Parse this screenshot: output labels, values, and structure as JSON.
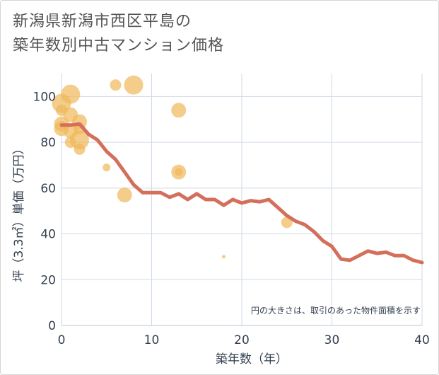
{
  "title_line1": "新潟県新潟市西区平島の",
  "title_line2": "築年数別中古マンション価格",
  "chart_data": {
    "type": "scatter+line",
    "xlabel": "築年数（年）",
    "ylabel": "坪（3.3㎡）単価（万円）",
    "xlim": [
      0,
      40
    ],
    "ylim": [
      0,
      110
    ],
    "xticks": [
      0,
      10,
      20,
      30,
      40
    ],
    "yticks": [
      0,
      20,
      40,
      60,
      80,
      100
    ],
    "grid": true,
    "note": "円の大きさは、取引のあった物件面積を示す",
    "colors": {
      "bubble": "#f0b85a",
      "line": "#d46f5b",
      "grid": "#cfdae6",
      "axis_text": "#333f4f"
    },
    "scatter": [
      {
        "x": 0,
        "y": 97,
        "size": "large"
      },
      {
        "x": 0,
        "y": 94,
        "size": "small"
      },
      {
        "x": 0,
        "y": 88,
        "size": "medium"
      },
      {
        "x": 0,
        "y": 86,
        "size": "medium"
      },
      {
        "x": 1,
        "y": 101,
        "size": "large"
      },
      {
        "x": 1,
        "y": 92,
        "size": "medium"
      },
      {
        "x": 1,
        "y": 85,
        "size": "medium"
      },
      {
        "x": 1,
        "y": 80,
        "size": "small"
      },
      {
        "x": 2,
        "y": 89,
        "size": "medium"
      },
      {
        "x": 2,
        "y": 86,
        "size": "small"
      },
      {
        "x": 2,
        "y": 81,
        "size": "large"
      },
      {
        "x": 2,
        "y": 77,
        "size": "small"
      },
      {
        "x": 5,
        "y": 69,
        "size": "xsmall"
      },
      {
        "x": 6,
        "y": 105,
        "size": "small"
      },
      {
        "x": 7,
        "y": 57,
        "size": "medium"
      },
      {
        "x": 8,
        "y": 105,
        "size": "large"
      },
      {
        "x": 13,
        "y": 94,
        "size": "medium"
      },
      {
        "x": 13,
        "y": 67,
        "size": "medium"
      },
      {
        "x": 13,
        "y": 67,
        "size": "xsmall"
      },
      {
        "x": 18,
        "y": 30,
        "size": "tiny"
      },
      {
        "x": 25,
        "y": 45,
        "size": "small"
      }
    ],
    "line": {
      "x": [
        0,
        1,
        2,
        3,
        4,
        5,
        6,
        7,
        8,
        9,
        10,
        11,
        12,
        13,
        14,
        15,
        16,
        17,
        18,
        19,
        20,
        21,
        22,
        23,
        24,
        25,
        26,
        27,
        28,
        29,
        30,
        31,
        32,
        33,
        34,
        35,
        36,
        37,
        38,
        39,
        40
      ],
      "y": [
        87.5,
        87.5,
        88,
        83.5,
        81,
        76,
        72.5,
        67,
        61.5,
        58,
        58,
        58,
        56,
        57.5,
        55,
        57.5,
        55,
        55,
        52.5,
        55,
        53.5,
        54.5,
        54,
        55,
        51.5,
        48,
        45.5,
        44,
        41,
        37,
        34.5,
        29,
        28.5,
        30.5,
        32.5,
        31.5,
        32,
        30.5,
        30.5,
        28.5,
        27.5
      ]
    }
  }
}
